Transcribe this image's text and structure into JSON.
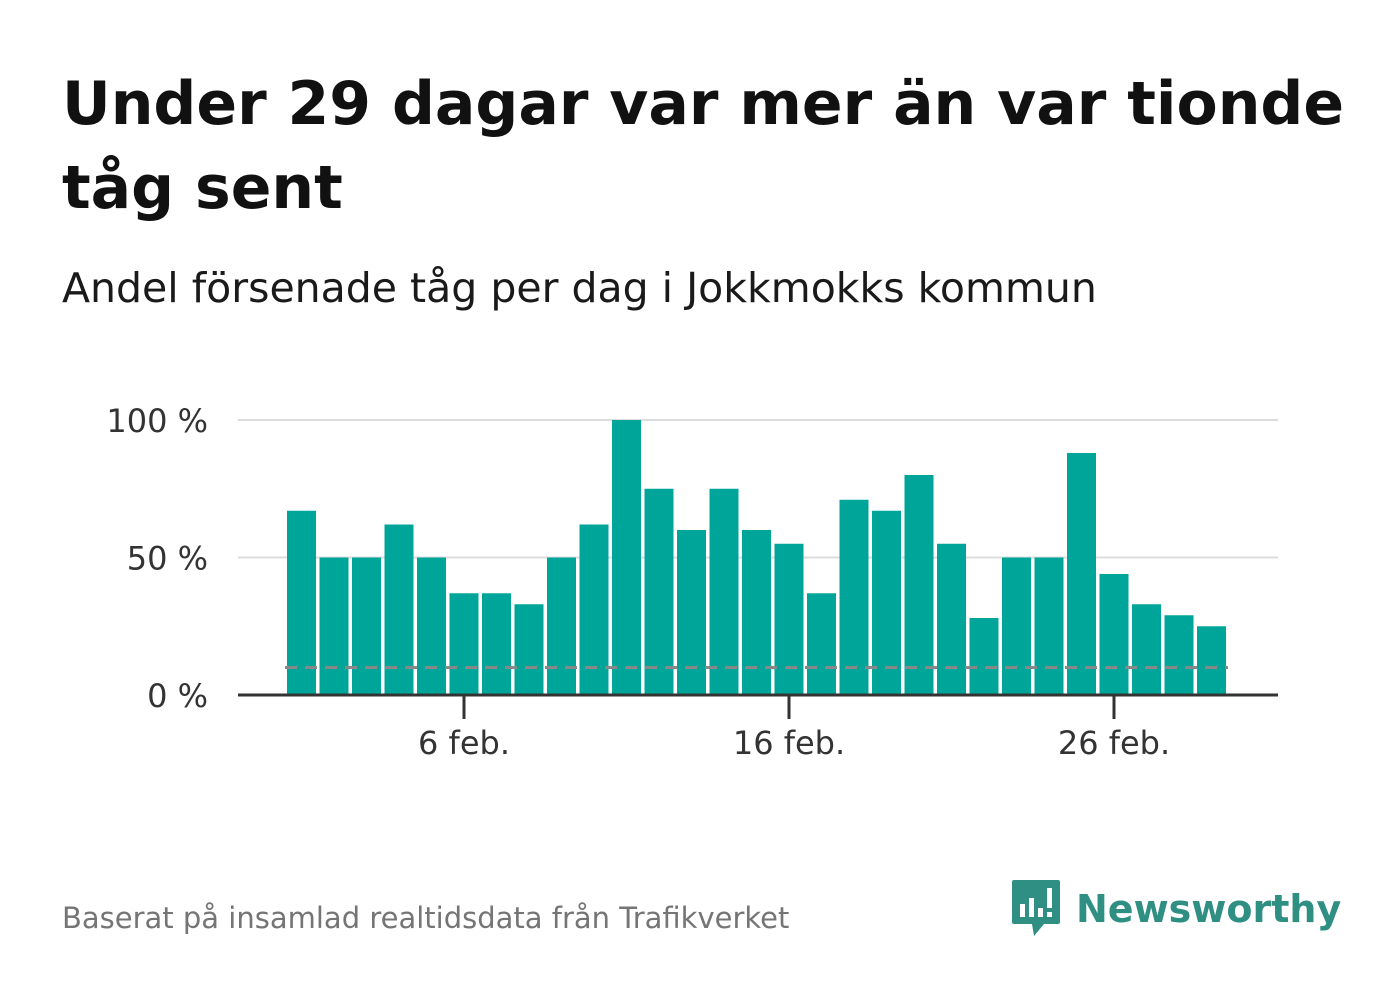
{
  "header": {
    "title": "Under 29 dagar var mer än var tionde tåg sent",
    "subtitle": "Andel försenade tåg per dag i Jokkmokks kommun"
  },
  "footer": {
    "source": "Baserat på insamlad realtidsdata från Trafikverket",
    "brand": "Newsworthy"
  },
  "colors": {
    "bar": "#00a59a",
    "threshold": "#888888",
    "grid": "#dcdcdc",
    "axis": "#333333",
    "brand": "#2f8f82"
  },
  "icons": {
    "brand_logo": "newsworthy-chart-bubble-icon"
  },
  "chart_data": {
    "type": "bar",
    "x": [
      "2024-02-01",
      "2024-02-02",
      "2024-02-03",
      "2024-02-04",
      "2024-02-05",
      "2024-02-06",
      "2024-02-07",
      "2024-02-08",
      "2024-02-09",
      "2024-02-10",
      "2024-02-11",
      "2024-02-12",
      "2024-02-13",
      "2024-02-14",
      "2024-02-15",
      "2024-02-16",
      "2024-02-17",
      "2024-02-18",
      "2024-02-19",
      "2024-02-20",
      "2024-02-21",
      "2024-02-22",
      "2024-02-23",
      "2024-02-24",
      "2024-02-25",
      "2024-02-26",
      "2024-02-27",
      "2024-02-28",
      "2024-02-29"
    ],
    "values": [
      67,
      50,
      50,
      62,
      50,
      37,
      37,
      33,
      50,
      62,
      100,
      75,
      60,
      75,
      60,
      55,
      37,
      71,
      67,
      80,
      55,
      28,
      50,
      50,
      88,
      44,
      33,
      29,
      25
    ],
    "threshold": 10,
    "ylim": [
      0,
      100
    ],
    "yticks": [
      0,
      50,
      100
    ],
    "ytick_labels": [
      "0 %",
      "50 %",
      "100 %"
    ],
    "xticks": [
      "2024-02-06",
      "2024-02-16",
      "2024-02-26"
    ],
    "xtick_labels": [
      "6 feb.",
      "16 feb.",
      "26 feb."
    ],
    "xlabel": "",
    "ylabel": "",
    "grid": true
  }
}
